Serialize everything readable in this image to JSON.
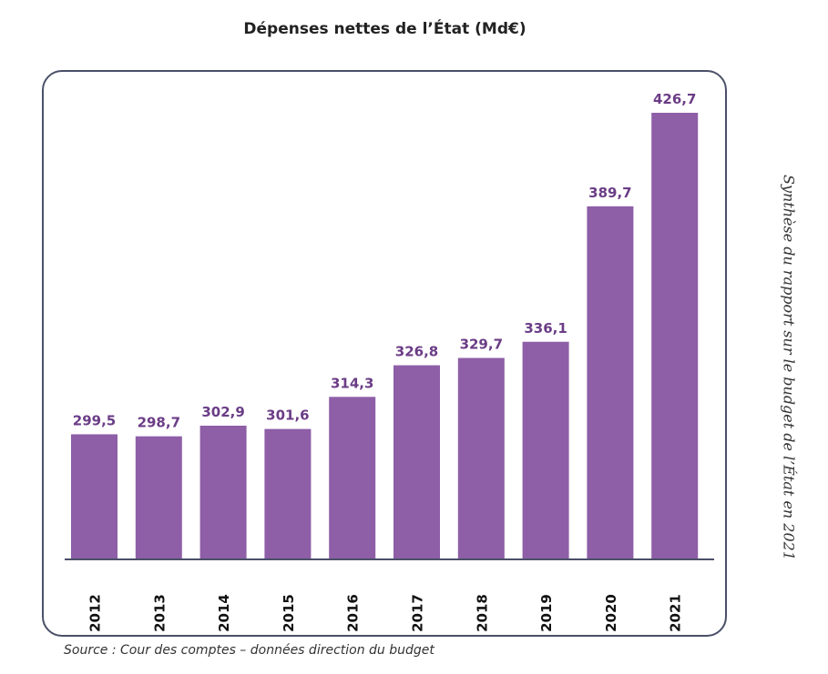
{
  "chart_data": {
    "type": "bar",
    "title": "Dépenses nettes de l’État (Md€)",
    "categories": [
      "2012",
      "2013",
      "2014",
      "2015",
      "2016",
      "2017",
      "2018",
      "2019",
      "2020",
      "2021"
    ],
    "values": [
      299.5,
      298.7,
      302.9,
      301.6,
      314.3,
      326.8,
      329.7,
      336.1,
      389.7,
      426.7
    ],
    "value_labels": [
      "299,5",
      "298,7",
      "302,9",
      "301,6",
      "314,3",
      "326,8",
      "329,7",
      "336,1",
      "389,7",
      "426,7"
    ],
    "xlabel": "",
    "ylabel": "",
    "ylim": [
      250,
      430
    ],
    "grid": false,
    "bar_color": "#8e5ea7",
    "label_color": "#6b3d86"
  },
  "source": "Source : Cour des comptes – données direction du budget",
  "side_caption": "Synthèse du rapport sur le budget de l’État en 2021"
}
